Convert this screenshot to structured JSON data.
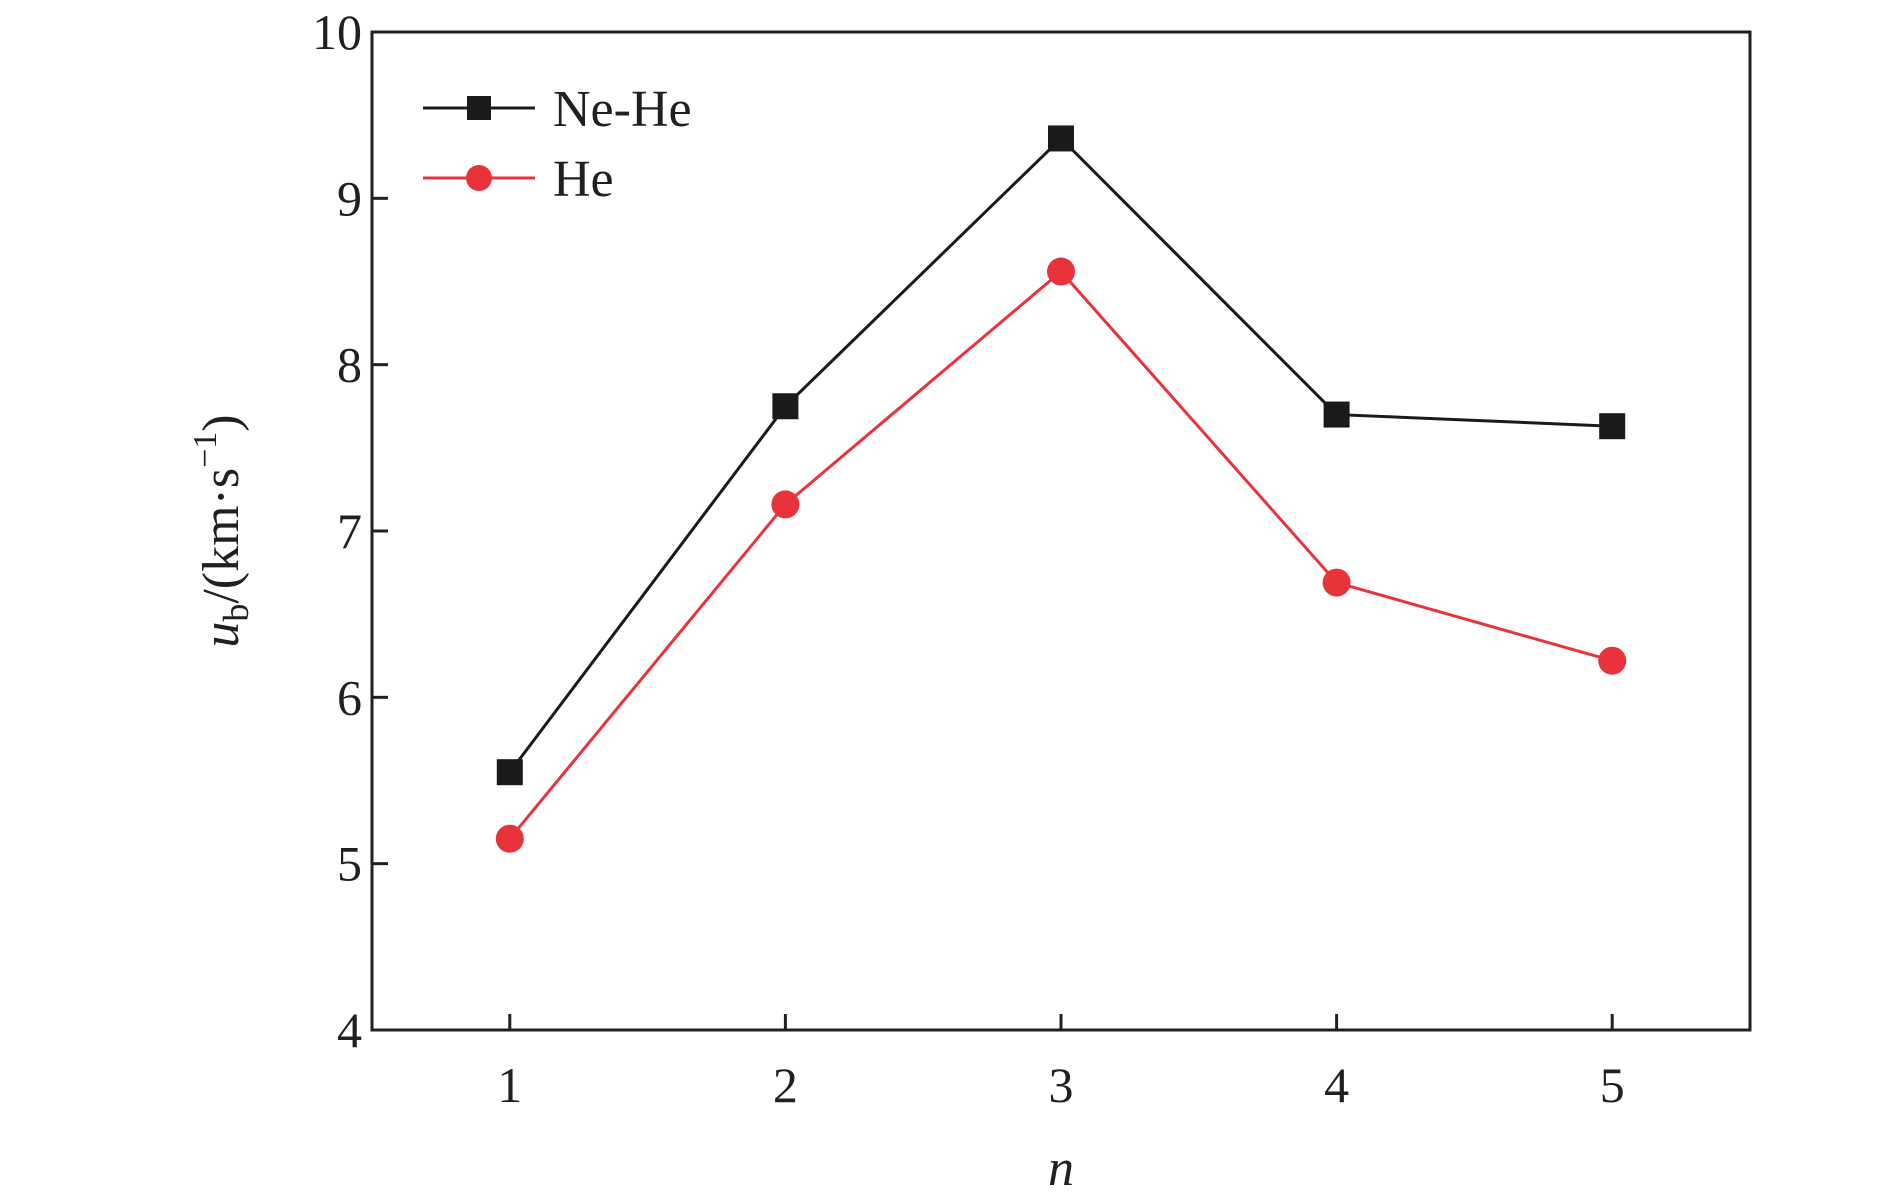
{
  "chart_data": {
    "type": "line",
    "xlabel": "n",
    "ylabel": {
      "var": "u",
      "sub": "b",
      "unit_prefix": "/(km·s",
      "sup": "−1",
      "unit_suffix": ")"
    },
    "x": [
      1,
      2,
      3,
      4,
      5
    ],
    "x_tick_labels": [
      "1",
      "2",
      "3",
      "4",
      "5"
    ],
    "xlim": [
      0.5,
      5.5
    ],
    "ylim": [
      4,
      10
    ],
    "y_ticks": [
      4,
      5,
      6,
      7,
      8,
      9,
      10
    ],
    "y_tick_labels": [
      "4",
      "5",
      "6",
      "7",
      "8",
      "9",
      "10"
    ],
    "grid": false,
    "legend_position": "top-left",
    "series": [
      {
        "name": "Ne-He",
        "marker": "square",
        "color": "#1a1a1a",
        "values": [
          5.55,
          7.75,
          9.36,
          7.7,
          7.63
        ]
      },
      {
        "name": "He",
        "marker": "circle",
        "color": "#e8333a",
        "values": [
          5.15,
          7.16,
          8.56,
          6.69,
          6.22
        ]
      }
    ]
  }
}
